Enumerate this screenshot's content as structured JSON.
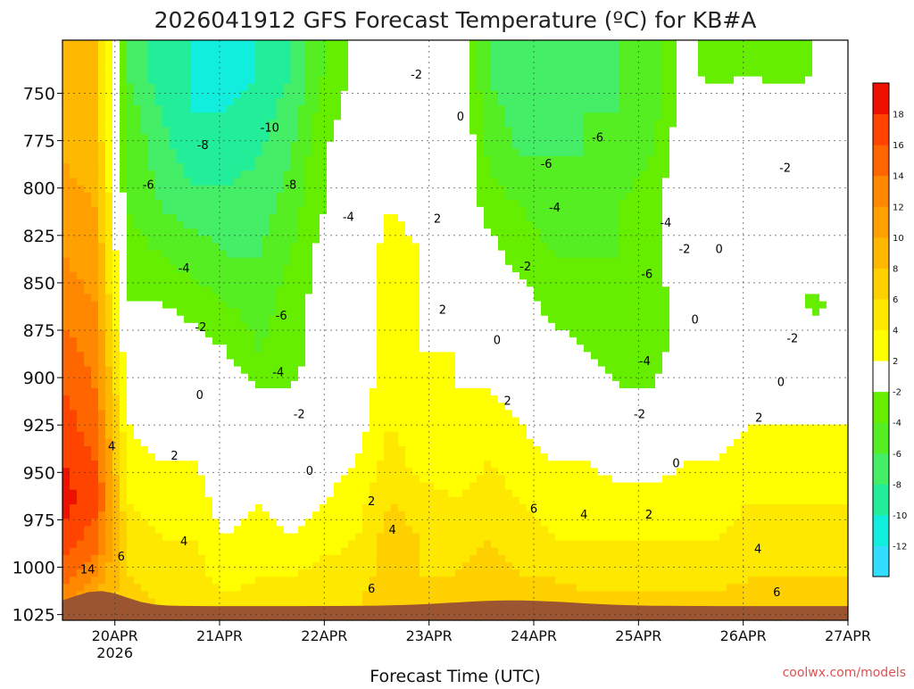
{
  "chart_data": {
    "type": "heatmap",
    "title": "2026041912 GFS Forecast Temperature (ºC) for KB#A",
    "xlabel": "Forecast Time (UTC)",
    "ylabel": "",
    "credit": "coolwx.com/models",
    "x_ticks": [
      {
        "label": "20APR",
        "sublabel": "2026",
        "t": 0.5
      },
      {
        "label": "21APR",
        "t": 1.5
      },
      {
        "label": "22APR",
        "t": 2.5
      },
      {
        "label": "23APR",
        "t": 3.5
      },
      {
        "label": "24APR",
        "t": 4.5
      },
      {
        "label": "25APR",
        "t": 5.5
      },
      {
        "label": "26APR",
        "t": 6.5
      },
      {
        "label": "27APR",
        "t": 7.5
      }
    ],
    "xlim": [
      0,
      7.5
    ],
    "y_ticks": [
      750,
      775,
      800,
      825,
      850,
      875,
      900,
      925,
      950,
      975,
      1000,
      1025
    ],
    "ylim": [
      1028,
      722
    ],
    "colorbar": {
      "levels": [
        -12,
        -10,
        -8,
        -6,
        -4,
        -2,
        2,
        4,
        6,
        8,
        10,
        12,
        14,
        16,
        18
      ],
      "colors": [
        "#33ddff",
        "#11eedd",
        "#22ee99",
        "#44ee66",
        "#55ee22",
        "#66ee00",
        "#ffffff",
        "#ffff00",
        "#ffe800",
        "#ffd000",
        "#ffb800",
        "#ffa000",
        "#ff8800",
        "#ff6600",
        "#ff4400",
        "#ee1100"
      ]
    },
    "sample_rows": [
      {
        "p": 740,
        "temps": [
          8,
          8,
          -6,
          -9,
          -10,
          -11,
          -10,
          -8,
          -4,
          -1,
          1,
          0,
          1,
          -6,
          -8,
          -8,
          -7,
          -6,
          -6,
          -1,
          -3,
          -2,
          -3,
          -2,
          -2
        ]
      },
      {
        "p": 760,
        "temps": [
          9,
          8,
          -5,
          -8,
          -10,
          -10,
          -9,
          -7,
          -3,
          -1,
          1,
          0,
          1,
          -5,
          -7,
          -7,
          -6,
          -6,
          -5,
          -1,
          0,
          1,
          0,
          0,
          -1
        ]
      },
      {
        "p": 785,
        "temps": [
          10,
          9,
          -4,
          -7,
          -9,
          -9,
          -8,
          -6,
          -2,
          0,
          1,
          0,
          1,
          -4,
          -6,
          -6,
          -6,
          -5,
          -4,
          0,
          1,
          1,
          0,
          1,
          0
        ]
      },
      {
        "p": 810,
        "temps": [
          11,
          10,
          -4,
          -6,
          -7,
          -7,
          -7,
          -5,
          -2,
          0,
          2,
          1,
          1,
          -3,
          -4,
          -5,
          -5,
          -4,
          -3,
          0,
          1,
          1,
          0,
          1,
          1
        ]
      },
      {
        "p": 835,
        "temps": [
          12,
          11,
          -3,
          -4,
          -5,
          -6,
          -6,
          -4,
          -1,
          0,
          3,
          2,
          1,
          -1,
          -3,
          -4,
          -4,
          -4,
          -3,
          0,
          1,
          0,
          0,
          1,
          1
        ]
      },
      {
        "p": 860,
        "temps": [
          13,
          12,
          -2,
          -2,
          -3,
          -4,
          -5,
          -3,
          -1,
          1,
          3,
          2,
          1,
          0,
          -1,
          -3,
          -3,
          -3,
          -3,
          -1,
          0,
          0,
          0,
          -3,
          0
        ]
      },
      {
        "p": 885,
        "temps": [
          15,
          13,
          0,
          0,
          -1,
          -2,
          -4,
          -3,
          -1,
          1,
          3,
          2,
          2,
          1,
          0,
          -1,
          -2,
          -3,
          -3,
          -1,
          0,
          0,
          0,
          0,
          0
        ]
      },
      {
        "p": 905,
        "temps": [
          16,
          14,
          1,
          0,
          -1,
          -1,
          -2,
          -2,
          0,
          1,
          3,
          2,
          2,
          2,
          1,
          0,
          -1,
          -2,
          -2,
          0,
          0,
          1,
          1,
          1,
          1
        ]
      },
      {
        "p": 925,
        "temps": [
          17,
          15,
          2,
          1,
          1,
          0,
          0,
          -1,
          0,
          1,
          4,
          3,
          2,
          3,
          2,
          1,
          0,
          0,
          0,
          1,
          1,
          2,
          2,
          2,
          2
        ]
      },
      {
        "p": 945,
        "temps": [
          18,
          16,
          3,
          2,
          2,
          1,
          1,
          0,
          1,
          2,
          5,
          3,
          3,
          4,
          3,
          2,
          2,
          1,
          1,
          2,
          2,
          3,
          3,
          3,
          3
        ]
      },
      {
        "p": 965,
        "temps": [
          19,
          17,
          4,
          3,
          3,
          1,
          2,
          1,
          2,
          3,
          6,
          5,
          4,
          5,
          4,
          3,
          3,
          3,
          3,
          3,
          3,
          4,
          4,
          4,
          4
        ]
      },
      {
        "p": 985,
        "temps": [
          17,
          15,
          5,
          4,
          4,
          2,
          3,
          2,
          3,
          4,
          7,
          6,
          5,
          6,
          5,
          4,
          4,
          4,
          4,
          4,
          4,
          5,
          5,
          5,
          5
        ]
      },
      {
        "p": 1005,
        "temps": [
          15,
          12,
          6,
          5,
          5,
          3,
          4,
          4,
          5,
          5,
          7,
          6,
          6,
          7,
          6,
          6,
          5,
          5,
          5,
          5,
          5,
          6,
          6,
          6,
          6
        ]
      },
      {
        "p": 1020,
        "temps": [
          13,
          9,
          7,
          6,
          6,
          5,
          5,
          5,
          6,
          6,
          7,
          7,
          7,
          7,
          7,
          7,
          7,
          7,
          7,
          7,
          7,
          7,
          7,
          7,
          7
        ]
      }
    ],
    "contour_labels": [
      {
        "text": "-10",
        "t": 1.98,
        "p": 768
      },
      {
        "text": "-8",
        "t": 1.34,
        "p": 777
      },
      {
        "text": "-8",
        "t": 2.18,
        "p": 798
      },
      {
        "text": "-6",
        "t": 0.82,
        "p": 798
      },
      {
        "text": "-4",
        "t": 2.73,
        "p": 815
      },
      {
        "text": "-4",
        "t": 1.16,
        "p": 842
      },
      {
        "text": "-2",
        "t": 1.32,
        "p": 873
      },
      {
        "text": "-6",
        "t": 2.09,
        "p": 867
      },
      {
        "text": "-4",
        "t": 2.06,
        "p": 897
      },
      {
        "text": "-2",
        "t": 2.26,
        "p": 919
      },
      {
        "text": "0",
        "t": 1.31,
        "p": 909
      },
      {
        "text": "0",
        "t": 2.36,
        "p": 949
      },
      {
        "text": "2",
        "t": 1.07,
        "p": 941
      },
      {
        "text": "4",
        "t": 1.16,
        "p": 986
      },
      {
        "text": "6",
        "t": 0.56,
        "p": 994
      },
      {
        "text": "14",
        "t": 0.24,
        "p": 1001
      },
      {
        "text": "4",
        "t": 0.47,
        "p": 936
      },
      {
        "text": "-2",
        "t": 3.38,
        "p": 740
      },
      {
        "text": "0",
        "t": 3.8,
        "p": 762
      },
      {
        "text": "2",
        "t": 3.58,
        "p": 816
      },
      {
        "text": "2",
        "t": 3.63,
        "p": 864
      },
      {
        "text": "0",
        "t": 4.15,
        "p": 880
      },
      {
        "text": "2",
        "t": 4.25,
        "p": 912
      },
      {
        "text": "2",
        "t": 2.95,
        "p": 965
      },
      {
        "text": "4",
        "t": 3.15,
        "p": 980
      },
      {
        "text": "6",
        "t": 2.95,
        "p": 1011
      },
      {
        "text": "6",
        "t": 4.5,
        "p": 969
      },
      {
        "text": "4",
        "t": 4.98,
        "p": 972
      },
      {
        "text": "2",
        "t": 5.6,
        "p": 972
      },
      {
        "text": "-6",
        "t": 5.11,
        "p": 773
      },
      {
        "text": "-6",
        "t": 4.62,
        "p": 787
      },
      {
        "text": "-4",
        "t": 4.7,
        "p": 810
      },
      {
        "text": "-2",
        "t": 4.42,
        "p": 841
      },
      {
        "text": "-4",
        "t": 5.76,
        "p": 818
      },
      {
        "text": "-2",
        "t": 5.94,
        "p": 832
      },
      {
        "text": "-6",
        "t": 5.58,
        "p": 845
      },
      {
        "text": "-4",
        "t": 5.56,
        "p": 891
      },
      {
        "text": "-2",
        "t": 5.51,
        "p": 919
      },
      {
        "text": "0",
        "t": 6.04,
        "p": 869
      },
      {
        "text": "0",
        "t": 6.27,
        "p": 832
      },
      {
        "text": "0",
        "t": 5.86,
        "p": 945
      },
      {
        "text": "-2",
        "t": 6.9,
        "p": 789
      },
      {
        "text": "-2",
        "t": 6.97,
        "p": 879
      },
      {
        "text": "0",
        "t": 6.86,
        "p": 902
      },
      {
        "text": "2",
        "t": 6.65,
        "p": 921
      },
      {
        "text": "4",
        "t": 6.64,
        "p": 990
      },
      {
        "text": "6",
        "t": 6.82,
        "p": 1013
      }
    ]
  }
}
